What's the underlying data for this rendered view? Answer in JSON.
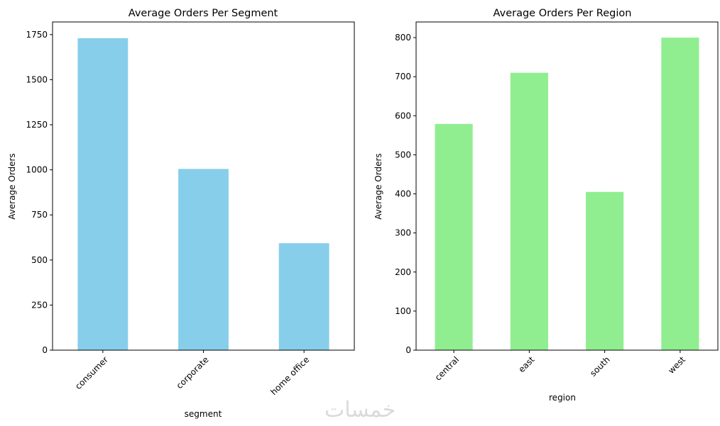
{
  "chart_data": [
    {
      "type": "bar",
      "title": "Average Orders Per Segment",
      "xlabel": "segment",
      "ylabel": "Average Orders",
      "categories": [
        "consumer",
        "corporate",
        "home office"
      ],
      "values": [
        1730,
        1005,
        593
      ],
      "ylim": [
        0,
        1820
      ],
      "yticks": [
        0,
        250,
        500,
        750,
        1000,
        1250,
        1500,
        1750
      ],
      "color": "#87ceeb",
      "grid": false
    },
    {
      "type": "bar",
      "title": "Average Orders Per Region",
      "xlabel": "region",
      "ylabel": "Average Orders",
      "categories": [
        "central",
        "east",
        "south",
        "west"
      ],
      "values": [
        579,
        710,
        405,
        800
      ],
      "ylim": [
        0,
        840
      ],
      "yticks": [
        0,
        100,
        200,
        300,
        400,
        500,
        600,
        700,
        800
      ],
      "color": "#90ee90",
      "grid": false
    }
  ],
  "watermark": "خمسات"
}
